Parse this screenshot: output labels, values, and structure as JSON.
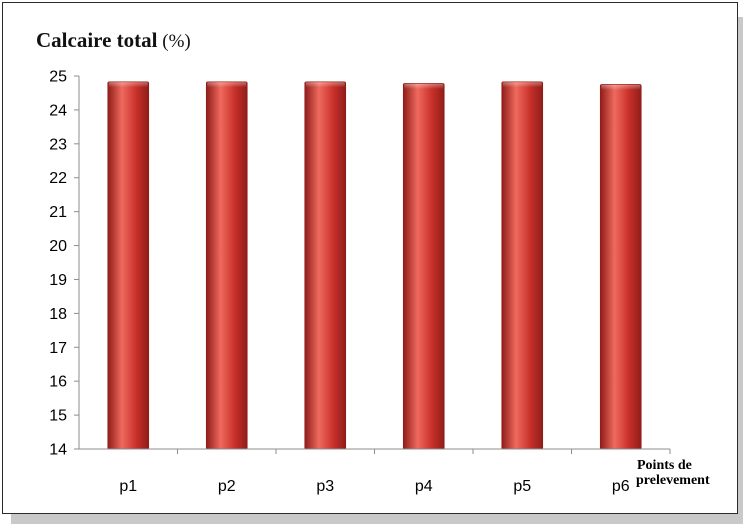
{
  "chart_data": {
    "type": "bar",
    "title_main": "Calcaire total",
    "title_unit": " (%)",
    "xlabel_line1": "Points de",
    "xlabel_line2": "prelevement",
    "ylabel": "",
    "categories": [
      "p1",
      "p2",
      "p3",
      "p4",
      "p5",
      "p6"
    ],
    "values": [
      24.83,
      24.83,
      24.83,
      24.78,
      24.83,
      24.75
    ],
    "ylim": [
      14,
      25
    ],
    "yticks": [
      14,
      15,
      16,
      17,
      18,
      19,
      20,
      21,
      22,
      23,
      24,
      25
    ],
    "grid": false,
    "legend": "none",
    "bar_color": "#c8302a",
    "bar_highlight": "#ef6a5e",
    "bar_shadow": "#8f1d19"
  }
}
